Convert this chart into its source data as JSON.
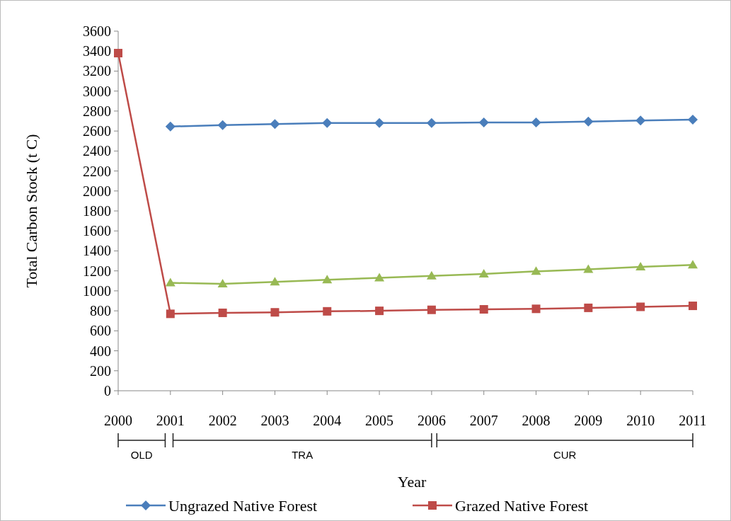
{
  "chart_data": {
    "type": "line",
    "xlabel": "Year",
    "ylabel": "Total Carbon Stock (t C)",
    "categories": [
      "2000",
      "2001",
      "2002",
      "2003",
      "2004",
      "2005",
      "2006",
      "2007",
      "2008",
      "2009",
      "2010",
      "2011"
    ],
    "series": [
      {
        "name": "Ungrazed Native Forest",
        "color": "#4a7ebb",
        "marker": "diamond",
        "values": [
          null,
          2645,
          2660,
          2670,
          2680,
          2680,
          2680,
          2685,
          2685,
          2695,
          2705,
          2715
        ]
      },
      {
        "name": "Grazed Native Forest",
        "color": "#be4b48",
        "marker": "square",
        "values": [
          3380,
          770,
          780,
          785,
          795,
          800,
          810,
          815,
          820,
          830,
          840,
          850
        ]
      },
      {
        "color": "#98b954",
        "marker": "triangle",
        "values": [
          null,
          1080,
          1070,
          1090,
          1110,
          1130,
          1150,
          1170,
          1195,
          1215,
          1240,
          1260
        ]
      }
    ],
    "ylim": [
      0,
      3600
    ],
    "yticks": [
      0,
      200,
      400,
      600,
      800,
      1000,
      1200,
      1400,
      1600,
      1800,
      2000,
      2200,
      2400,
      2600,
      2800,
      3000,
      3200,
      3400,
      3600
    ],
    "annotations": [
      "OLD",
      "TRA",
      "CUR"
    ],
    "legend": "bottom",
    "grid": false,
    "line_style": "solid"
  }
}
